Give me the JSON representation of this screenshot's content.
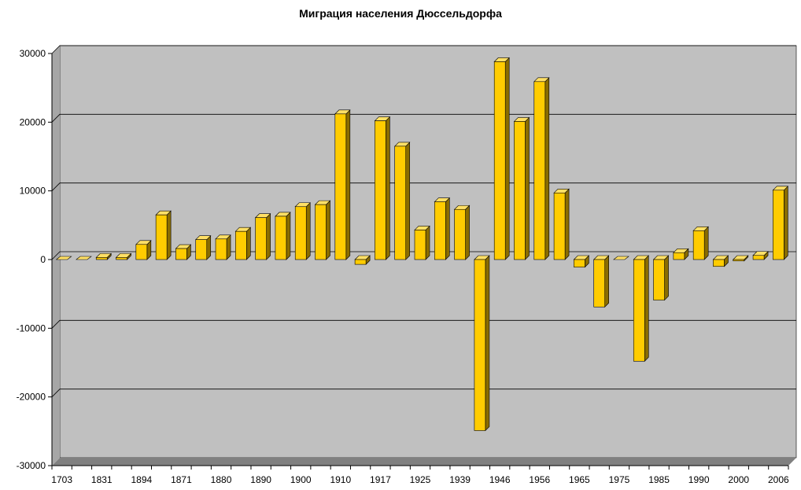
{
  "chart_data": {
    "type": "bar",
    "title": "Миграция населения Дюссельдорфа",
    "xlabel": "",
    "ylabel": "",
    "ylim": [
      -30000,
      30000
    ],
    "yticks": [
      30000,
      20000,
      10000,
      0,
      -10000,
      -20000,
      -30000
    ],
    "grid": true,
    "legend": "none",
    "categories": [
      "1703",
      "",
      "1831",
      "",
      "1894",
      "",
      "1871",
      "",
      "1880",
      "",
      "1890",
      "",
      "1900",
      "",
      "1910",
      "",
      "1917",
      "",
      "1925",
      "",
      "1939",
      "",
      "1946",
      "",
      "1956",
      "",
      "1965",
      "",
      "1975",
      "",
      "1985",
      "",
      "1990",
      "",
      "2000",
      "",
      "2006"
    ],
    "values": [
      0,
      0,
      300,
      300,
      2200,
      6500,
      1600,
      2900,
      3000,
      4100,
      6100,
      6300,
      7700,
      8000,
      21200,
      -700,
      20200,
      16500,
      4300,
      8400,
      7300,
      -24900,
      28800,
      20100,
      25900,
      9700,
      -1100,
      -6900,
      0,
      -14800,
      -5900,
      1000,
      4200,
      -1000,
      -200,
      600,
      10100
    ],
    "colors": {
      "bar_front": "#ffcc00",
      "bar_top": "#ffe066",
      "bar_side": "#8a6d00",
      "plot_back": "#c0c0c0",
      "floor": "#808080",
      "gridline": "#000000"
    }
  }
}
